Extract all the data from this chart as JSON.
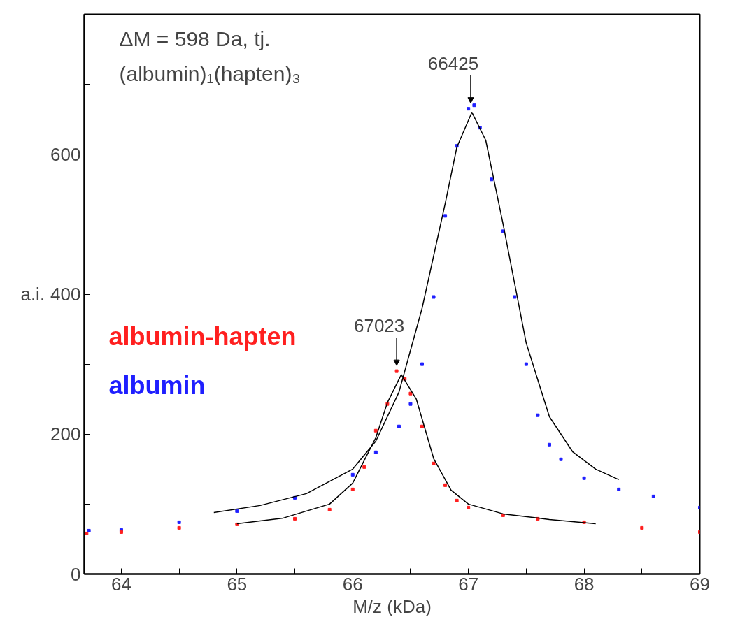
{
  "chart_data": {
    "type": "scatter",
    "xlabel": "M/z (kDa)",
    "ylabel": "a.i.",
    "xlim": [
      63.68,
      69.0
    ],
    "ylim": [
      0,
      800
    ],
    "xticks": [
      64,
      {
        "value": 64.5,
        "label": null
      },
      65,
      {
        "value": 65.5,
        "label": null
      },
      66,
      {
        "value": 66.5,
        "label": null
      },
      67,
      {
        "value": 67.5,
        "label": null
      },
      68,
      {
        "value": 68.5,
        "label": null
      },
      69
    ],
    "yticks": [
      0,
      {
        "value": 100,
        "label": null
      },
      200,
      {
        "value": 300,
        "label": null
      },
      400,
      {
        "value": 500,
        "label": null
      },
      600,
      {
        "value": 700,
        "label": null
      }
    ],
    "grid": false,
    "marker": "square",
    "annotations": [
      "ΔM = 598 Da, tj.",
      "(albumin)₁(hapten)₃",
      {
        "text": "66425",
        "x": 67.02,
        "y": 665
      },
      {
        "text": "67023",
        "x": 66.38,
        "y": 290
      }
    ],
    "series": [
      {
        "name": "albumin",
        "color": "#1f1fff",
        "x": [
          63.72,
          64.0,
          64.5,
          65.0,
          65.5,
          66.0,
          66.2,
          66.4,
          66.5,
          66.6,
          66.7,
          66.8,
          66.9,
          67.0,
          67.05,
          67.1,
          67.2,
          67.3,
          67.4,
          67.5,
          67.6,
          67.7,
          67.8,
          68.0,
          68.3,
          68.6,
          69.0
        ],
        "values": [
          62,
          63,
          74,
          90,
          109,
          142,
          174,
          211,
          243,
          300,
          396,
          512,
          612,
          665,
          670,
          638,
          564,
          490,
          396,
          300,
          227,
          185,
          164,
          137,
          121,
          111,
          95
        ]
      },
      {
        "name": "albumin-hapten",
        "color": "#ff1f1f",
        "x": [
          63.7,
          64.0,
          64.5,
          65.0,
          65.5,
          65.8,
          66.0,
          66.1,
          66.2,
          66.3,
          66.38,
          66.45,
          66.5,
          66.6,
          66.7,
          66.8,
          66.9,
          67.0,
          67.3,
          67.6,
          68.0,
          68.5,
          69.0
        ],
        "values": [
          58,
          60,
          66,
          71,
          79,
          92,
          121,
          153,
          205,
          243,
          290,
          279,
          258,
          211,
          158,
          127,
          105,
          95,
          84,
          79,
          74,
          66,
          60
        ]
      },
      {
        "type": "line",
        "color": "#000000",
        "marker": "none",
        "x": [
          64.8,
          65.2,
          65.6,
          66.0,
          66.2,
          66.4,
          66.6,
          66.8,
          66.9,
          67.03,
          67.15,
          67.3,
          67.5,
          67.7,
          67.9,
          68.1,
          68.3
        ],
        "values": [
          88,
          98,
          115,
          150,
          190,
          260,
          380,
          530,
          610,
          660,
          620,
          500,
          330,
          225,
          175,
          150,
          135
        ]
      },
      {
        "type": "line",
        "color": "#000000",
        "marker": "none",
        "x": [
          65.0,
          65.4,
          65.8,
          66.0,
          66.2,
          66.3,
          66.42,
          66.55,
          66.7,
          66.85,
          67.0,
          67.3,
          67.7,
          68.1
        ],
        "values": [
          72,
          80,
          100,
          130,
          195,
          245,
          285,
          250,
          165,
          120,
          100,
          86,
          78,
          72
        ]
      }
    ]
  }
}
